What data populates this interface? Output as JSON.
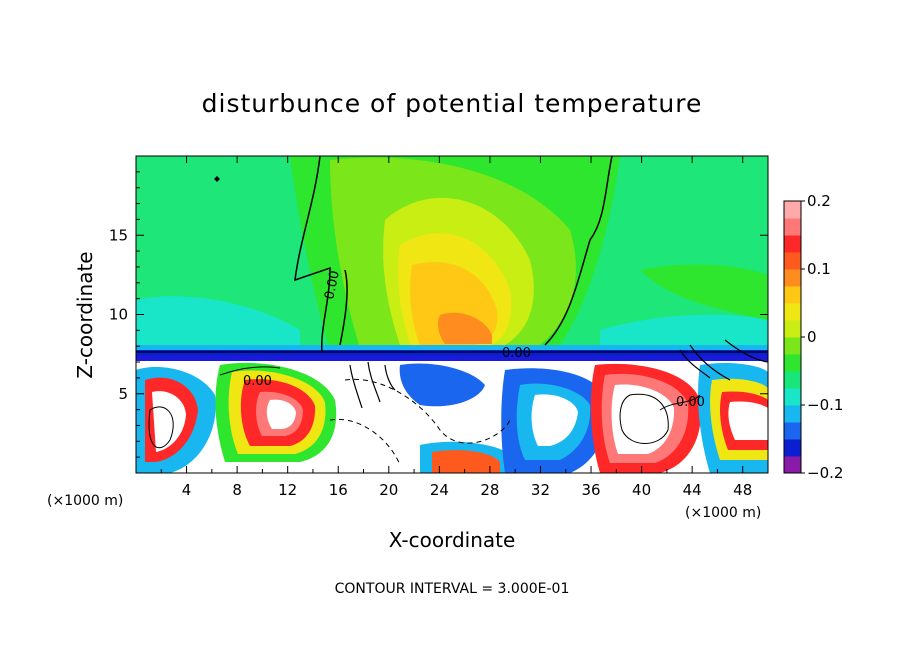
{
  "chart_data": {
    "type": "heatmap",
    "title": "disturbunce of potential temperature",
    "xlabel": "X-coordinate",
    "ylabel": "Z-coordinate",
    "x_unit": "(×1000 m)",
    "x_unit_right": "(×1000 m)",
    "xlim": [
      0,
      50
    ],
    "ylim": [
      0,
      20
    ],
    "x_ticks": [
      4,
      8,
      12,
      16,
      20,
      24,
      28,
      32,
      36,
      40,
      44,
      48
    ],
    "y_ticks": [
      5,
      10,
      15
    ],
    "contour_interval_text": "CONTOUR INTERVAL = 3.000E-01",
    "contour_label": "0.00",
    "colorbar": {
      "range": [
        -0.2,
        0.2
      ],
      "tick_values": [
        0.2,
        0.1,
        0,
        -0.1,
        -0.2
      ],
      "tick_labels": [
        "0.2",
        "0.1",
        "0",
        "−0.1",
        "−0.2"
      ],
      "colors": [
        "#8a1aa8",
        "#0b1fd0",
        "#1a66ee",
        "#19b7f0",
        "#19e6c8",
        "#19e678",
        "#2ee62e",
        "#7be61a",
        "#c8ee14",
        "#f0e614",
        "#ffc814",
        "#ff8c1e",
        "#ff5a1e",
        "#ff2828",
        "#ff7878",
        "#ffaaaa"
      ]
    }
  }
}
